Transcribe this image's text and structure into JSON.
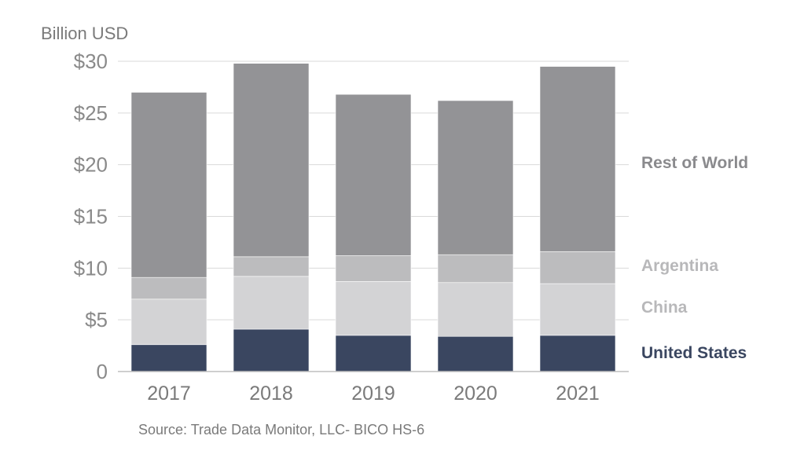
{
  "chart_data": {
    "type": "bar",
    "stacked": true,
    "ylabel": "Billion USD",
    "ylim": [
      0,
      30
    ],
    "yticks": [
      0,
      5,
      10,
      15,
      20,
      25,
      30
    ],
    "ytick_labels": [
      "0",
      "$5",
      "$10",
      "$15",
      "$20",
      "$25",
      "$30"
    ],
    "categories": [
      "2017",
      "2018",
      "2019",
      "2020",
      "2021"
    ],
    "series": [
      {
        "name": "United States",
        "color": "#3a4660",
        "values": [
          2.6,
          4.1,
          3.5,
          3.4,
          3.5
        ]
      },
      {
        "name": "China",
        "color": "#d3d3d5",
        "values": [
          4.4,
          5.1,
          5.2,
          5.2,
          5.0
        ]
      },
      {
        "name": "Argentina",
        "color": "#bcbcbe",
        "values": [
          2.1,
          1.9,
          2.5,
          2.7,
          3.1
        ]
      },
      {
        "name": "Rest of World",
        "color": "#939396",
        "values": [
          17.9,
          18.7,
          15.6,
          14.9,
          17.9
        ]
      }
    ],
    "legend_colors": [
      "#3a4660",
      "#b8b8ba",
      "#b8b8ba",
      "#8a8a8d"
    ],
    "grid": true,
    "legend": "right",
    "source": "Source: Trade Data Monitor, LLC- BICO HS-6"
  }
}
